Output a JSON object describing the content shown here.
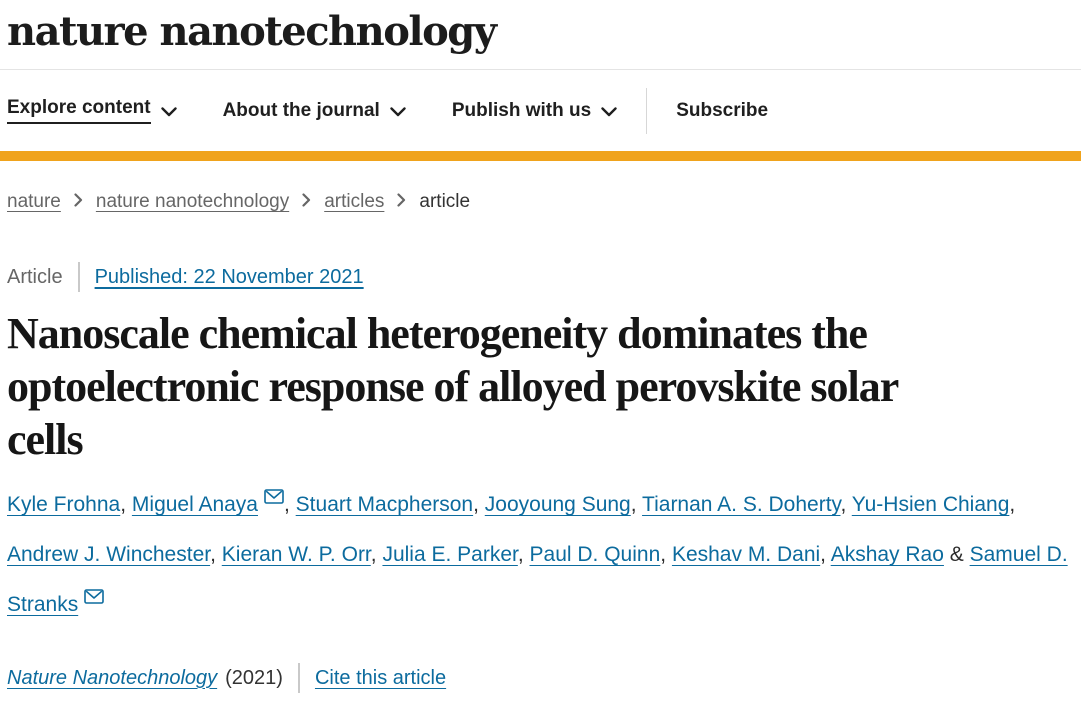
{
  "theme": {
    "accent_bar": "#f0a31c",
    "link_blue": "#0c6b9e",
    "text_dark": "#222222",
    "text_gray": "#666666",
    "divider_gray": "#cccccc"
  },
  "header": {
    "logo": "nature nanotechnology"
  },
  "nav": {
    "items": [
      {
        "label": "Explore content",
        "has_dropdown": true,
        "current": true
      },
      {
        "label": "About the journal",
        "has_dropdown": true,
        "current": false
      },
      {
        "label": "Publish with us",
        "has_dropdown": true,
        "current": false
      }
    ],
    "subscribe_label": "Subscribe"
  },
  "breadcrumb": {
    "links": [
      "nature",
      "nature nanotechnology",
      "articles"
    ],
    "current": "article"
  },
  "article_meta": {
    "type_label": "Article",
    "published_link": "Published: 22 November 2021"
  },
  "title": "Nanoscale chemical heterogeneity dominates the\noptoelectronic response of alloyed perovskite solar\ncells",
  "authors": {
    "list": [
      {
        "name": "Kyle Frohna",
        "envelope": false,
        "sep": ", "
      },
      {
        "name": "Miguel Anaya",
        "envelope": true,
        "sep": ", "
      },
      {
        "name": "Stuart Macpherson",
        "envelope": false,
        "sep": ", "
      },
      {
        "name": "Jooyoung Sung",
        "envelope": false,
        "sep": ", "
      },
      {
        "name": "Tiarnan A. S. Doherty",
        "envelope": false,
        "sep": ", "
      },
      {
        "name": "Yu-Hsien Chiang",
        "envelope": false,
        "sep": ", "
      },
      {
        "name": "Andrew J. Winchester",
        "envelope": false,
        "sep": ", "
      },
      {
        "name": "Kieran W. P. Orr",
        "envelope": false,
        "sep": ", "
      },
      {
        "name": "Julia E. Parker",
        "envelope": false,
        "sep": ", "
      },
      {
        "name": "Paul D. Quinn",
        "envelope": false,
        "sep": ", "
      },
      {
        "name": "Keshav M. Dani",
        "envelope": false,
        "sep": ", "
      },
      {
        "name": "Akshay Rao",
        "envelope": false,
        "sep": " & "
      },
      {
        "name": "Samuel D. Stranks",
        "envelope": true,
        "sep": ""
      }
    ]
  },
  "citation": {
    "journal": "Nature Nanotechnology",
    "year": "(2021)",
    "cite_link": "Cite this article"
  }
}
